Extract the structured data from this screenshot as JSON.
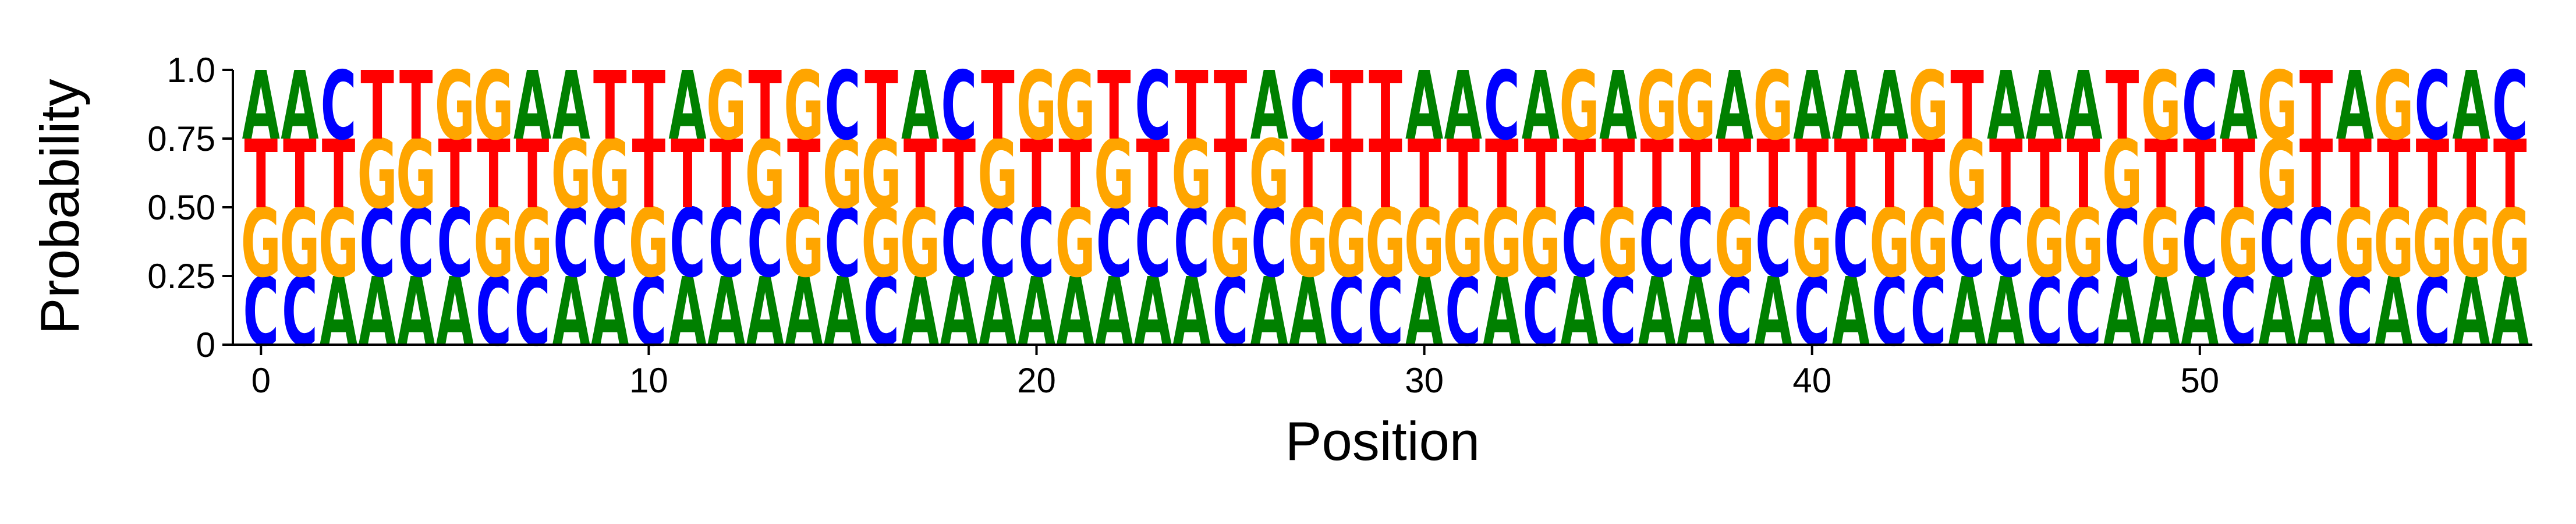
{
  "chart_data": {
    "type": "sequence-logo",
    "xlabel": "Position",
    "ylabel": "Probability",
    "ylim": [
      0,
      1
    ],
    "yticks": [
      "0",
      "0.25",
      "0.50",
      "0.75",
      "1.0"
    ],
    "yticks_values": [
      0,
      0.25,
      0.5,
      0.75,
      1.0
    ],
    "xticks": [
      "0",
      "10",
      "20",
      "30",
      "40",
      "50"
    ],
    "xticks_values": [
      0,
      10,
      20,
      30,
      40,
      50
    ],
    "colors": {
      "A": "#008000",
      "C": "#0000ff",
      "G": "#ffa500",
      "T": "#ff0000"
    },
    "positions": [
      {
        "pos": 0,
        "stack": [
          "C",
          "G",
          "T",
          "A"
        ]
      },
      {
        "pos": 1,
        "stack": [
          "C",
          "G",
          "T",
          "A"
        ]
      },
      {
        "pos": 2,
        "stack": [
          "A",
          "G",
          "T",
          "C"
        ]
      },
      {
        "pos": 3,
        "stack": [
          "A",
          "C",
          "G",
          "T"
        ]
      },
      {
        "pos": 4,
        "stack": [
          "A",
          "C",
          "G",
          "T"
        ]
      },
      {
        "pos": 5,
        "stack": [
          "A",
          "C",
          "T",
          "G"
        ]
      },
      {
        "pos": 6,
        "stack": [
          "C",
          "G",
          "T",
          "G"
        ]
      },
      {
        "pos": 7,
        "stack": [
          "C",
          "G",
          "T",
          "A"
        ]
      },
      {
        "pos": 8,
        "stack": [
          "A",
          "C",
          "G",
          "A"
        ]
      },
      {
        "pos": 9,
        "stack": [
          "A",
          "C",
          "G",
          "T"
        ]
      },
      {
        "pos": 10,
        "stack": [
          "C",
          "G",
          "T",
          "T"
        ]
      },
      {
        "pos": 11,
        "stack": [
          "A",
          "C",
          "T",
          "A"
        ]
      },
      {
        "pos": 12,
        "stack": [
          "A",
          "C",
          "T",
          "G"
        ]
      },
      {
        "pos": 13,
        "stack": [
          "A",
          "C",
          "G",
          "T"
        ]
      },
      {
        "pos": 14,
        "stack": [
          "A",
          "G",
          "T",
          "G"
        ]
      },
      {
        "pos": 15,
        "stack": [
          "A",
          "C",
          "G",
          "C"
        ]
      },
      {
        "pos": 16,
        "stack": [
          "C",
          "G",
          "G",
          "T"
        ]
      },
      {
        "pos": 17,
        "stack": [
          "A",
          "G",
          "T",
          "A"
        ]
      },
      {
        "pos": 18,
        "stack": [
          "A",
          "C",
          "T",
          "C"
        ]
      },
      {
        "pos": 19,
        "stack": [
          "A",
          "C",
          "G",
          "T"
        ]
      },
      {
        "pos": 20,
        "stack": [
          "A",
          "C",
          "T",
          "G"
        ]
      },
      {
        "pos": 21,
        "stack": [
          "A",
          "G",
          "T",
          "G"
        ]
      },
      {
        "pos": 22,
        "stack": [
          "A",
          "C",
          "G",
          "T"
        ]
      },
      {
        "pos": 23,
        "stack": [
          "A",
          "C",
          "T",
          "C"
        ]
      },
      {
        "pos": 24,
        "stack": [
          "A",
          "C",
          "G",
          "T"
        ]
      },
      {
        "pos": 25,
        "stack": [
          "C",
          "G",
          "T",
          "T"
        ]
      },
      {
        "pos": 26,
        "stack": [
          "A",
          "C",
          "G",
          "A"
        ]
      },
      {
        "pos": 27,
        "stack": [
          "A",
          "G",
          "T",
          "C"
        ]
      },
      {
        "pos": 28,
        "stack": [
          "C",
          "G",
          "T",
          "T"
        ]
      },
      {
        "pos": 29,
        "stack": [
          "C",
          "G",
          "T",
          "T"
        ]
      },
      {
        "pos": 30,
        "stack": [
          "A",
          "G",
          "T",
          "A"
        ]
      },
      {
        "pos": 31,
        "stack": [
          "C",
          "G",
          "T",
          "A"
        ]
      },
      {
        "pos": 32,
        "stack": [
          "A",
          "G",
          "T",
          "C"
        ]
      },
      {
        "pos": 33,
        "stack": [
          "C",
          "G",
          "T",
          "A"
        ]
      },
      {
        "pos": 34,
        "stack": [
          "A",
          "C",
          "T",
          "G"
        ]
      },
      {
        "pos": 35,
        "stack": [
          "C",
          "G",
          "T",
          "A"
        ]
      },
      {
        "pos": 36,
        "stack": [
          "A",
          "C",
          "T",
          "G"
        ]
      },
      {
        "pos": 37,
        "stack": [
          "A",
          "C",
          "T",
          "G"
        ]
      },
      {
        "pos": 38,
        "stack": [
          "C",
          "G",
          "T",
          "A"
        ]
      },
      {
        "pos": 39,
        "stack": [
          "A",
          "C",
          "T",
          "G"
        ]
      },
      {
        "pos": 40,
        "stack": [
          "C",
          "G",
          "T",
          "A"
        ]
      },
      {
        "pos": 41,
        "stack": [
          "A",
          "C",
          "T",
          "A"
        ]
      },
      {
        "pos": 42,
        "stack": [
          "C",
          "G",
          "T",
          "A"
        ]
      },
      {
        "pos": 43,
        "stack": [
          "C",
          "G",
          "T",
          "G"
        ]
      },
      {
        "pos": 44,
        "stack": [
          "A",
          "C",
          "G",
          "T"
        ]
      },
      {
        "pos": 45,
        "stack": [
          "A",
          "C",
          "T",
          "A"
        ]
      },
      {
        "pos": 46,
        "stack": [
          "C",
          "G",
          "T",
          "A"
        ]
      },
      {
        "pos": 47,
        "stack": [
          "C",
          "G",
          "T",
          "A"
        ]
      },
      {
        "pos": 48,
        "stack": [
          "A",
          "C",
          "G",
          "T"
        ]
      },
      {
        "pos": 49,
        "stack": [
          "A",
          "G",
          "T",
          "G"
        ]
      },
      {
        "pos": 50,
        "stack": [
          "A",
          "C",
          "T",
          "C"
        ]
      },
      {
        "pos": 51,
        "stack": [
          "C",
          "G",
          "T",
          "A"
        ]
      },
      {
        "pos": 52,
        "stack": [
          "A",
          "C",
          "G",
          "G"
        ]
      },
      {
        "pos": 53,
        "stack": [
          "A",
          "C",
          "T",
          "T"
        ]
      },
      {
        "pos": 54,
        "stack": [
          "C",
          "G",
          "T",
          "A"
        ]
      },
      {
        "pos": 55,
        "stack": [
          "A",
          "G",
          "T",
          "G"
        ]
      },
      {
        "pos": 56,
        "stack": [
          "C",
          "G",
          "T",
          "C"
        ]
      },
      {
        "pos": 57,
        "stack": [
          "A",
          "G",
          "T",
          "A"
        ]
      },
      {
        "pos": 58,
        "stack": [
          "A",
          "G",
          "T",
          "C"
        ]
      }
    ]
  }
}
